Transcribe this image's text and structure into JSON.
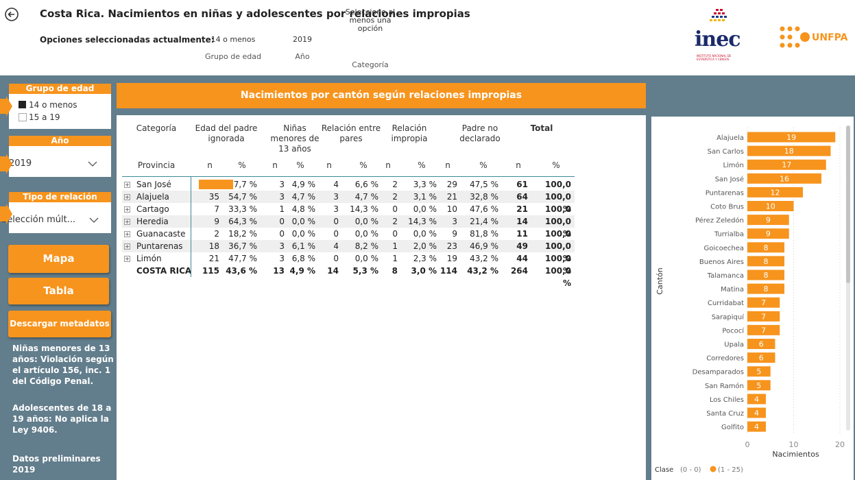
{
  "header": {
    "title": "Costa Rica. Nacimientos en niñas y adolescentes por relaciones impropias",
    "selections_label": "Opciones seleccionadas actualmente:",
    "selections": [
      {
        "value": "14 o menos",
        "label": "Grupo de edad"
      },
      {
        "value": "2019",
        "label": "Año"
      },
      {
        "value": "Seleccione al menos una opción",
        "label": "Categoría"
      }
    ],
    "logos": {
      "inec": "inec",
      "inec_subtitle": "INSTITUTO NACIONAL DE ESTADÍSTICA Y CENSOS",
      "unfpa": "UNFPA"
    }
  },
  "sidebar": {
    "filters": [
      {
        "title": "Grupo de edad",
        "options": [
          "14 o menos",
          "15 a 19"
        ]
      },
      {
        "title": "Año",
        "selected": "2019"
      },
      {
        "title": "Tipo de relación",
        "selected": "Selección múlt..."
      }
    ],
    "buttons": [
      "Mapa",
      "Tabla",
      "Descargar metadatos"
    ],
    "notes": [
      "Niñas menores de 13 años: Violación según el artículo 156, inc. 1 del Código Penal.",
      "Adolescentes de 18 a 19 años: No aplica la Ley 9406.",
      "Datos preliminares 2019"
    ]
  },
  "table": {
    "title": "Nacimientos por cantón según relaciones impropias",
    "group_headers": [
      "Categoría",
      "Edad del padre ignorada",
      "Niñas menores de 13 años",
      "Relación entre pares",
      "Relación impropia",
      "Padre no declarado",
      "Total"
    ],
    "row_header": "Provincia",
    "sub_headers": [
      "n",
      "%",
      "n",
      "%",
      "n",
      "%",
      "n",
      "%",
      "n",
      "%",
      "n",
      "%"
    ],
    "rows": [
      {
        "label": "San José",
        "cells": [
          null,
          "37,7 %",
          3,
          "4,9 %",
          4,
          "6,6 %",
          2,
          "3,3 %",
          29,
          "47,5 %",
          61,
          "100,0 %"
        ]
      },
      {
        "label": "Alajuela",
        "cells": [
          35,
          "54,7 %",
          3,
          "4,7 %",
          3,
          "4,7 %",
          2,
          "3,1 %",
          21,
          "32,8 %",
          64,
          "100,0 %"
        ]
      },
      {
        "label": "Cartago",
        "cells": [
          7,
          "33,3 %",
          1,
          "4,8 %",
          3,
          "14,3 %",
          0,
          "0,0 %",
          10,
          "47,6 %",
          21,
          "100,0 %"
        ]
      },
      {
        "label": "Heredia",
        "cells": [
          9,
          "64,3 %",
          0,
          "0,0 %",
          0,
          "0,0 %",
          2,
          "14,3 %",
          3,
          "21,4 %",
          14,
          "100,0 %"
        ]
      },
      {
        "label": "Guanacaste",
        "cells": [
          2,
          "18,2 %",
          0,
          "0,0 %",
          0,
          "0,0 %",
          0,
          "0,0 %",
          9,
          "81,8 %",
          11,
          "100,0 %"
        ]
      },
      {
        "label": "Puntarenas",
        "cells": [
          18,
          "36,7 %",
          3,
          "6,1 %",
          4,
          "8,2 %",
          1,
          "2,0 %",
          23,
          "46,9 %",
          49,
          "100,0 %"
        ]
      },
      {
        "label": "Limón",
        "cells": [
          21,
          "47,7 %",
          3,
          "6,8 %",
          0,
          "0,0 %",
          1,
          "2,3 %",
          19,
          "43,2 %",
          44,
          "100,0 %"
        ]
      }
    ],
    "total_row": {
      "label": "COSTA RICA",
      "cells": [
        115,
        "43,6 %",
        13,
        "4,9 %",
        14,
        "5,3 %",
        8,
        "3,0 %",
        114,
        "43,2 %",
        264,
        "100,0 %"
      ]
    }
  },
  "chart_data": {
    "type": "bar",
    "orientation": "horizontal",
    "categories": [
      "Alajuela",
      "San Carlos",
      "Limón",
      "San José",
      "Puntarenas",
      "Coto Brus",
      "Pérez Zeledón",
      "Turrialba",
      "Goicoechea",
      "Buenos Aires",
      "Talamanca",
      "Matina",
      "Curridabat",
      "Sarapiquí",
      "Pococí",
      "Upala",
      "Corredores",
      "Desamparados",
      "San Ramón",
      "Los Chiles",
      "Santa Cruz",
      "Golfito"
    ],
    "values": [
      19,
      18,
      17,
      16,
      12,
      10,
      9,
      9,
      8,
      8,
      8,
      8,
      7,
      7,
      7,
      6,
      6,
      5,
      5,
      4,
      4,
      4
    ],
    "color": "#f7941d",
    "xlim": [
      0,
      20
    ],
    "xticks": [
      0,
      10,
      20
    ],
    "grid": true,
    "x_label": "Nacimientos",
    "y_label": "Cantón",
    "legend": {
      "title": "Clase",
      "entries": [
        "(0 - 0)",
        "(1 - 25)"
      ]
    }
  }
}
